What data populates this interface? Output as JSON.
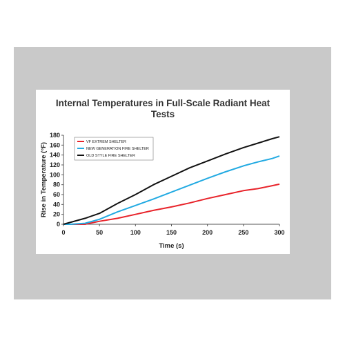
{
  "chart_data": {
    "type": "line",
    "title": [
      "Internal Temperatures in Full-Scale Radiant Heat",
      "Tests"
    ],
    "xlabel": "Time (s)",
    "ylabel": "Rise in Temperature (°F)",
    "xlim": [
      0,
      300
    ],
    "ylim": [
      0,
      180
    ],
    "xticks": [
      0,
      50,
      100,
      150,
      200,
      250,
      300
    ],
    "yticks": [
      0,
      20,
      40,
      60,
      80,
      100,
      120,
      140,
      160,
      180
    ],
    "grid": false,
    "legend_position": "top-left",
    "series": [
      {
        "name": "VF EXTREM SHELTER",
        "color": "#e8232a",
        "x": [
          0,
          10,
          30,
          50,
          75,
          100,
          125,
          150,
          175,
          200,
          225,
          250,
          270,
          290,
          300
        ],
        "y": [
          0,
          0,
          0,
          6,
          12,
          20,
          28,
          35,
          43,
          52,
          60,
          68,
          72,
          78,
          81
        ]
      },
      {
        "name": "NEW GENERATION FIRE SHELTER",
        "color": "#22aae2",
        "x": [
          0,
          10,
          30,
          50,
          75,
          100,
          125,
          150,
          175,
          200,
          225,
          250,
          270,
          290,
          300
        ],
        "y": [
          0,
          0,
          2,
          10,
          25,
          38,
          51,
          65,
          79,
          93,
          106,
          118,
          126,
          133,
          138
        ]
      },
      {
        "name": "OLD STYLE FIRE SHELTER",
        "color": "#111111",
        "x": [
          0,
          10,
          30,
          50,
          75,
          100,
          125,
          150,
          175,
          200,
          225,
          250,
          270,
          290,
          300
        ],
        "y": [
          0,
          4,
          12,
          22,
          42,
          60,
          80,
          97,
          114,
          128,
          142,
          155,
          164,
          173,
          177
        ]
      }
    ]
  }
}
